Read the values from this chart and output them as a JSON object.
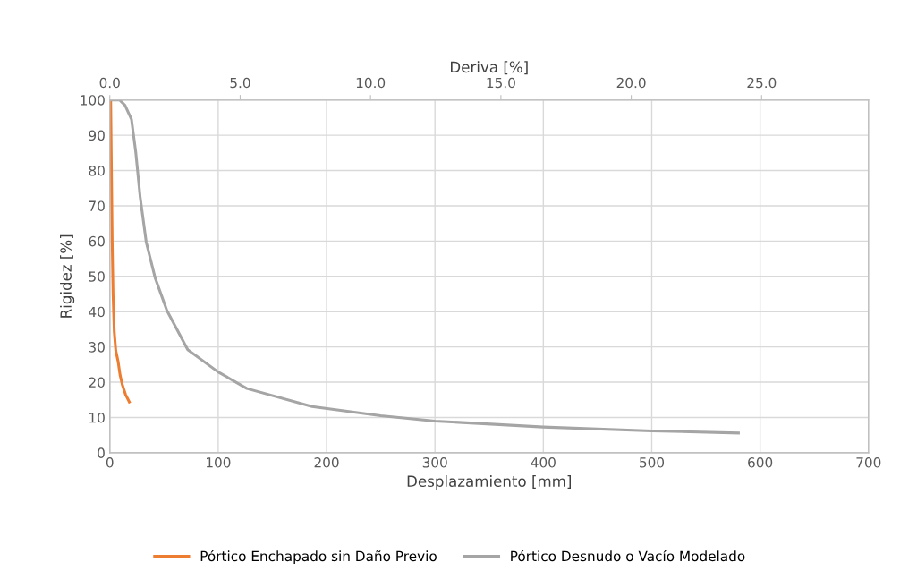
{
  "chart_data": {
    "type": "line",
    "xlabel": "Desplazamiento [mm]",
    "ylabel": "Rigidez [%]",
    "x2label": "Deriva [%]",
    "xlim": [
      0,
      700
    ],
    "xticks": [
      0,
      100,
      200,
      300,
      400,
      500,
      600,
      700
    ],
    "ylim": [
      0,
      100
    ],
    "yticks": [
      0,
      10,
      20,
      30,
      40,
      50,
      60,
      70,
      80,
      90,
      100
    ],
    "x2lim": [
      0,
      29.1
    ],
    "x2ticks": [
      {
        "value": 0,
        "label": "0.0"
      },
      {
        "value": 5,
        "label": "5.0"
      },
      {
        "value": 10,
        "label": "10.0"
      },
      {
        "value": 15,
        "label": "15.0"
      },
      {
        "value": 20,
        "label": "20.0"
      },
      {
        "value": 25,
        "label": "25.0"
      }
    ],
    "grid": true,
    "legend": "bottom",
    "marker": "none",
    "line_style": "solid",
    "series": [
      {
        "name": "Pórtico Enchapado sin Daño Previo",
        "color": "#ed7d31",
        "x": [
          0,
          0.8,
          1.5,
          2.2,
          3,
          4.1,
          5.5,
          7.7,
          9.5,
          11.7,
          14.5,
          18
        ],
        "values": [
          100,
          100,
          80,
          59.7,
          45,
          34.3,
          29,
          25.8,
          22,
          19.1,
          16.5,
          14.4
        ]
      },
      {
        "name": "Pórtico Desnudo o Vacío Modelado",
        "color": "#a5a5a5",
        "x": [
          2,
          9,
          14,
          20,
          24,
          28,
          33.6,
          41.8,
          52.7,
          71.9,
          100,
          126.5,
          186.6,
          250,
          300,
          400,
          500,
          580
        ],
        "values": [
          100,
          100,
          98.5,
          94.5,
          85,
          72.5,
          59.7,
          49.6,
          40.3,
          29.2,
          22.9,
          18.2,
          13.1,
          10.5,
          9,
          7.3,
          6.2,
          5.6
        ]
      }
    ]
  }
}
